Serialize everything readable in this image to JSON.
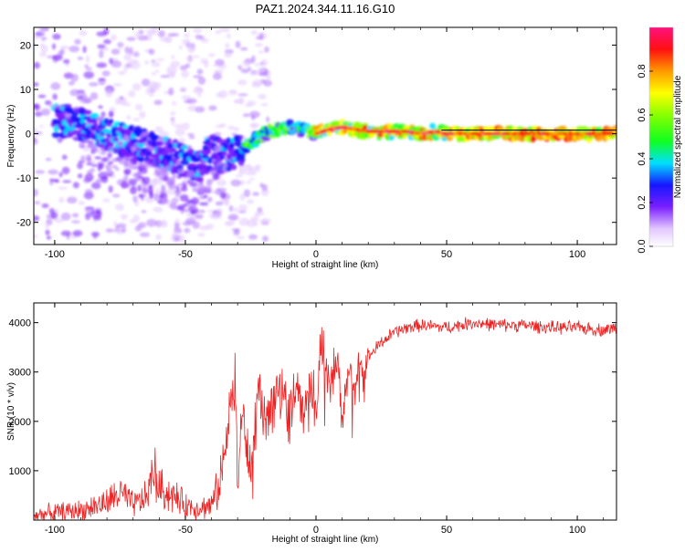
{
  "title": "PAZ1.2024.344.11.16.G10",
  "chart_data": [
    {
      "type": "heatmap",
      "xlabel": "Height of straight line (km)",
      "ylabel": "Frequency (Hz)",
      "xlim": [
        -108,
        115
      ],
      "ylim": [
        -25,
        24
      ],
      "xticks": [
        -100,
        -50,
        0,
        50,
        100
      ],
      "yticks": [
        -20,
        -10,
        0,
        10,
        20
      ],
      "colorbar": {
        "label": "Normalized spectral amplitude",
        "range": [
          0.0,
          1.0
        ],
        "ticks": [
          0.0,
          0.2,
          0.4,
          0.6,
          0.8
        ]
      },
      "ridge": {
        "x": [
          -95,
          -90,
          -85,
          -80,
          -75,
          -70,
          -65,
          -60,
          -55,
          -50,
          -45,
          -40,
          -35,
          -30,
          -25,
          -20,
          -15,
          -10,
          -5,
          0,
          5,
          10,
          15,
          20,
          25,
          30,
          35,
          40,
          45,
          50,
          60,
          70,
          80,
          90,
          100,
          110
        ],
        "y": [
          3,
          2,
          1,
          0,
          -1,
          -2,
          -3,
          -4,
          -5,
          -6,
          -7,
          -4,
          -5,
          -4,
          -2,
          0,
          1,
          1.5,
          1,
          0,
          1,
          1.5,
          1,
          0.5,
          0.5,
          0.5,
          0.5,
          0,
          0.5,
          0,
          0,
          0,
          0,
          0,
          0,
          0
        ]
      }
    },
    {
      "type": "line",
      "xlabel": "Height of straight line (km)",
      "ylabel": "SNR (10 * v/v)",
      "xlim": [
        -108,
        115
      ],
      "ylim": [
        0,
        4400
      ],
      "xticks": [
        -100,
        -50,
        0,
        50,
        100
      ],
      "yticks": [
        1000,
        2000,
        3000,
        4000
      ],
      "color": "#ee2222",
      "series": [
        {
          "x": [
            -108,
            -100,
            -90,
            -80,
            -75,
            -70,
            -65,
            -62,
            -60,
            -55,
            -50,
            -45,
            -40,
            -37,
            -35,
            -33,
            -31,
            -30,
            -28,
            -25,
            -22,
            -20,
            -15,
            -10,
            -7,
            -5,
            -2,
            0,
            2,
            5,
            8,
            10,
            12,
            15,
            18,
            20,
            25,
            30,
            35,
            40,
            50,
            60,
            70,
            80,
            90,
            100,
            110,
            115
          ],
          "y": [
            100,
            150,
            200,
            350,
            550,
            300,
            450,
            1000,
            650,
            500,
            300,
            250,
            300,
            700,
            1300,
            2200,
            3000,
            900,
            2100,
            1000,
            2600,
            1800,
            2700,
            2200,
            2900,
            2000,
            3000,
            2300,
            3600,
            2500,
            3300,
            1800,
            3100,
            2600,
            3000,
            3300,
            3600,
            3800,
            3900,
            3950,
            3900,
            4000,
            3950,
            3950,
            3900,
            3900,
            3850,
            3900
          ]
        }
      ]
    }
  ]
}
